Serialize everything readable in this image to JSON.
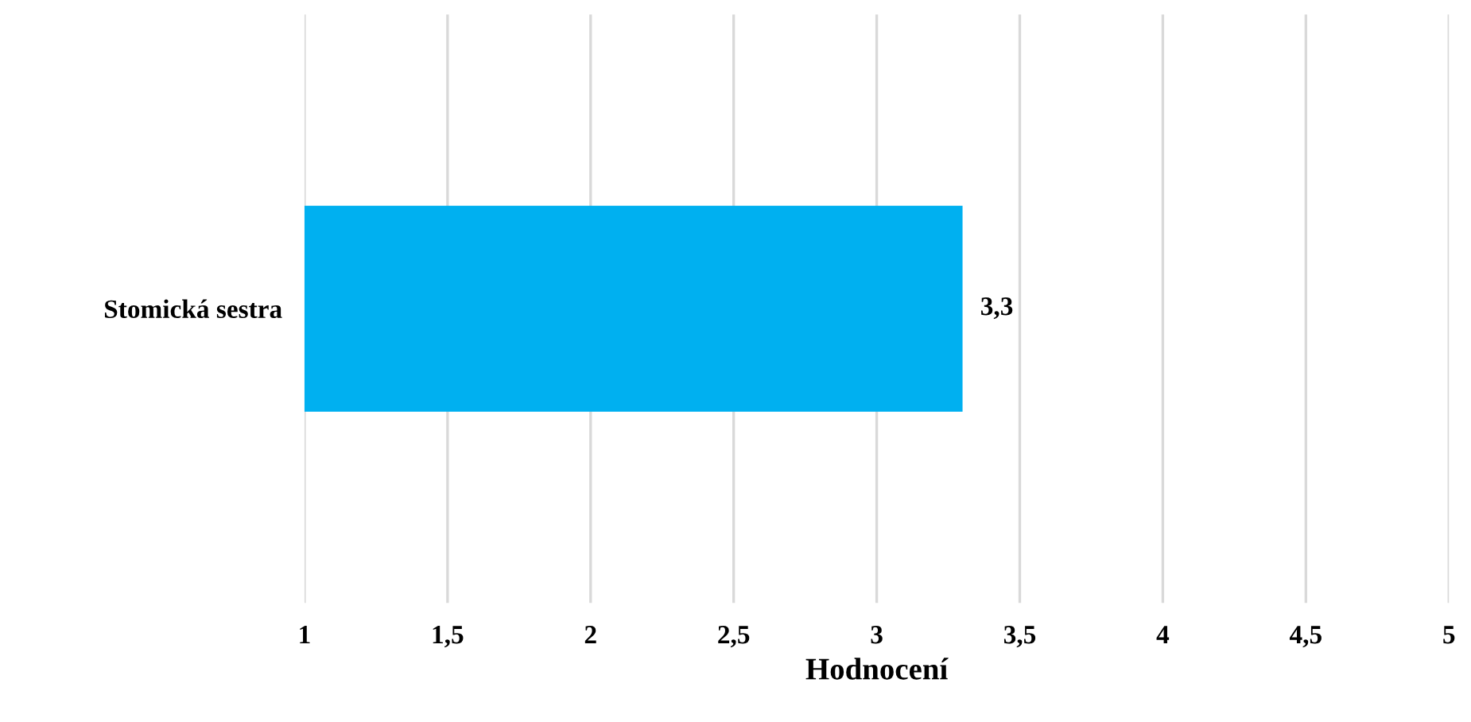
{
  "chart_data": {
    "type": "bar",
    "orientation": "horizontal",
    "categories": [
      "Stomická sestra"
    ],
    "values": [
      3.3
    ],
    "color": "#00b0f0",
    "value_labels": [
      "3,3"
    ],
    "xlabel": "Hodnocení",
    "xlim": [
      1,
      5
    ],
    "xticks": [
      1,
      {
        "value": 1.5,
        "label": "1,5"
      },
      2,
      {
        "value": 2.5,
        "label": "2,5"
      },
      3,
      {
        "value": 3.5,
        "label": "3,5"
      },
      4,
      {
        "value": 4.5,
        "label": "4,5"
      },
      5
    ],
    "grid": "x",
    "legend": false
  }
}
